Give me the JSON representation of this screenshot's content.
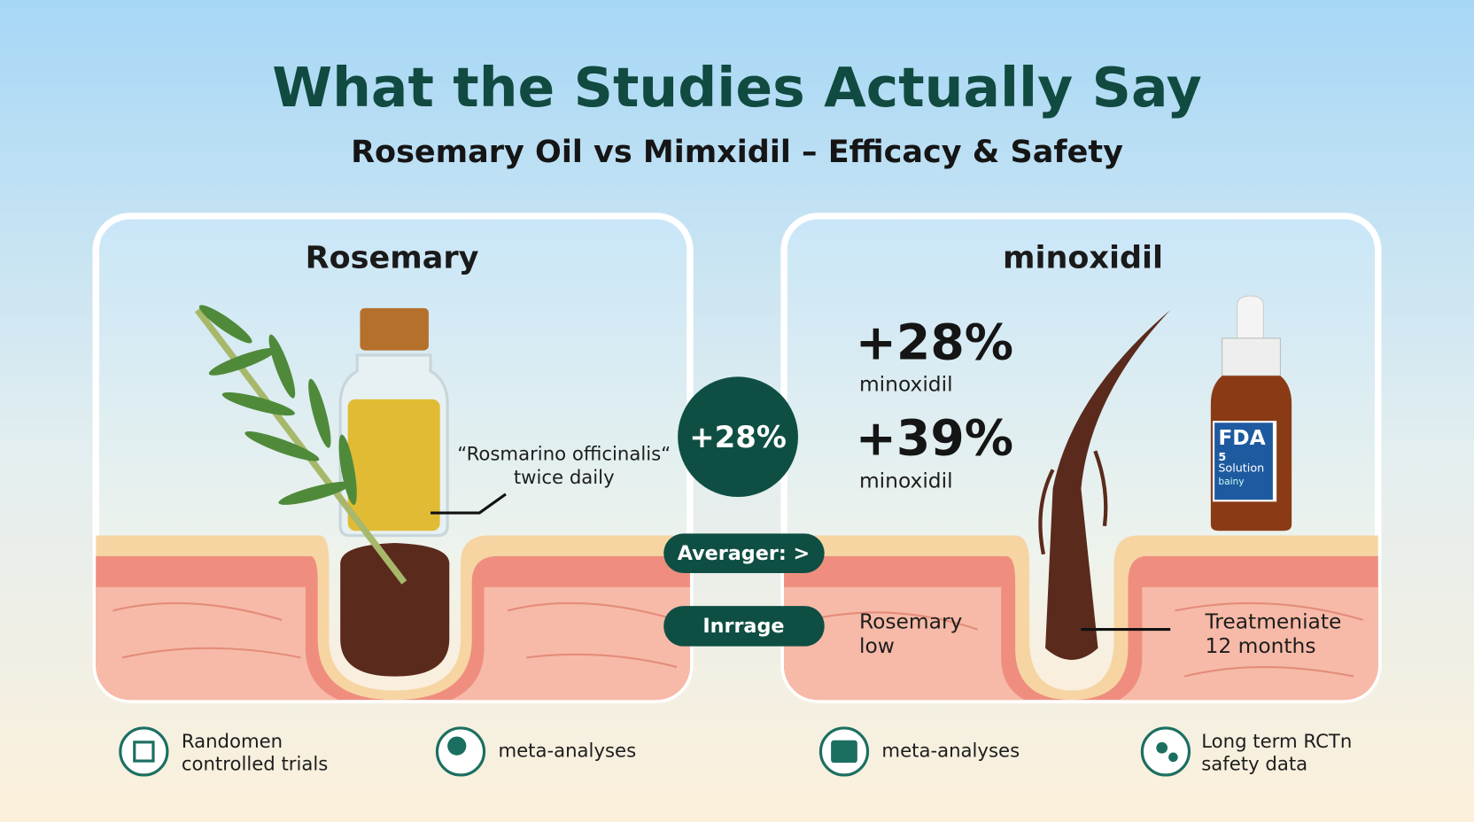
{
  "header": {
    "title": "What the Studies Actually Say",
    "subtitle": "Rosemary Oil vs Mimxidil – Efficacy & Safety"
  },
  "left_panel": {
    "title": "Rosemary",
    "annotation": [
      "“Rosmarino officinalis“",
      "twice daily"
    ]
  },
  "center": {
    "badge": "+28%",
    "pills": [
      "Averager: >",
      "Inrrage"
    ]
  },
  "right_panel": {
    "title": "minoxidil",
    "stats": [
      {
        "value": "+28%",
        "label": "minoxidil"
      },
      {
        "value": "+39%",
        "label": "minoxidil"
      }
    ],
    "note_left": [
      "Rosemary",
      "low"
    ],
    "note_right": [
      "Treatmeniate",
      "12 months"
    ],
    "bottle_label": [
      "FDA",
      "5",
      "Solution",
      "bainy"
    ]
  },
  "footer": {
    "items": [
      [
        "Randomen",
        "controlled trials"
      ],
      [
        "meta-analyses"
      ],
      [
        "meta-analyses"
      ],
      [
        "Long term RCTn",
        "safety data"
      ]
    ]
  }
}
